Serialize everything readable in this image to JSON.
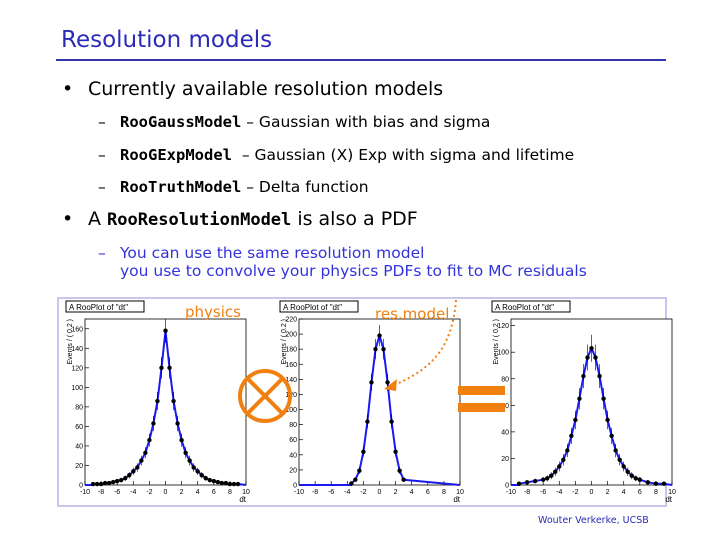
{
  "slide": {
    "title": "Resolution models",
    "bullets": [
      {
        "text": "Currently available resolution models",
        "subitems": [
          {
            "code": "RooGaussModel",
            "text": " – Gaussian with bias and sigma"
          },
          {
            "code": "RooGExpModel",
            "text": "  – Gaussian (X) Exp with sigma and lifetime"
          },
          {
            "code": "RooTruthModel",
            "text": " – Delta function"
          }
        ]
      },
      {
        "prefix": "A ",
        "code": "RooResolutionModel",
        "text": " is also a PDF",
        "subitems": [
          {
            "text": "You can use the same resolution model",
            "text2": "you use to convolve your physics PDFs to fit to MC residuals"
          }
        ]
      }
    ],
    "labels": {
      "physics": "physics",
      "resmodel": "res.model"
    },
    "operators": {
      "convolve": "convolution-circled-times-icon",
      "equals": "equals-sign"
    },
    "footer": "Wouter Verkerke, UCSB",
    "colors": {
      "title": "#2a2ab8",
      "accent": "#f08010",
      "curve": "#1a1aee",
      "panel_border": "#c8c8ee"
    }
  },
  "chart_data": [
    {
      "type": "scatter",
      "title": "A RooPlot of \"dt\"",
      "xlabel": "dt",
      "ylabel": "Events / ( 0.2 )",
      "xlim": [
        -10,
        10
      ],
      "ylim": [
        0,
        170
      ],
      "xticks": [
        -10,
        -8,
        -6,
        -4,
        -2,
        0,
        2,
        4,
        6,
        8,
        10
      ],
      "yticks": [
        0,
        20,
        40,
        60,
        80,
        100,
        120,
        140,
        160
      ],
      "x": [
        -9,
        -8.5,
        -8,
        -7.5,
        -7,
        -6.5,
        -6,
        -5.5,
        -5,
        -4.5,
        -4,
        -3.5,
        -3,
        -2.5,
        -2,
        -1.5,
        -1,
        -0.5,
        0,
        0.5,
        1,
        1.5,
        2,
        2.5,
        3,
        3.5,
        4,
        4.5,
        5,
        5.5,
        6,
        6.5,
        7,
        7.5,
        8,
        8.5,
        9
      ],
      "y": [
        1,
        1,
        1,
        2,
        2,
        3,
        4,
        5,
        7,
        10,
        14,
        18,
        25,
        33,
        46,
        63,
        86,
        120,
        158,
        120,
        86,
        63,
        46,
        33,
        25,
        18,
        14,
        10,
        7,
        5,
        4,
        3,
        2,
        2,
        1,
        1,
        1
      ]
    },
    {
      "type": "scatter",
      "title": "A RooPlot of \"dt\"",
      "xlabel": "dt",
      "ylabel": "Events / ( 0.2 )",
      "xlim": [
        -10,
        10
      ],
      "ylim": [
        0,
        220
      ],
      "xticks": [
        -10,
        -8,
        -6,
        -4,
        -2,
        0,
        2,
        4,
        6,
        8,
        10
      ],
      "yticks": [
        0,
        20,
        40,
        60,
        80,
        100,
        120,
        140,
        160,
        180,
        200,
        220
      ],
      "x": [
        -3.5,
        -3,
        -2.5,
        -2,
        -1.5,
        -1,
        -0.5,
        0,
        0.5,
        1,
        1.5,
        2,
        2.5,
        3
      ],
      "y": [
        2,
        7,
        19,
        44,
        84,
        136,
        180,
        198,
        180,
        136,
        84,
        44,
        19,
        7
      ]
    },
    {
      "type": "scatter",
      "title": "A RooPlot of \"dt\"",
      "xlabel": "dt",
      "ylabel": "Events / ( 0.2 )",
      "xlim": [
        -10,
        10
      ],
      "ylim": [
        0,
        125
      ],
      "xticks": [
        -10,
        -8,
        -6,
        -4,
        -2,
        0,
        2,
        4,
        6,
        8,
        10
      ],
      "yticks": [
        0,
        20,
        40,
        60,
        80,
        100,
        120
      ],
      "x": [
        -9,
        -8,
        -7,
        -6,
        -5.5,
        -5,
        -4.5,
        -4,
        -3.5,
        -3,
        -2.5,
        -2,
        -1.5,
        -1,
        -0.5,
        0,
        0.5,
        1,
        1.5,
        2,
        2.5,
        3,
        3.5,
        4,
        4.5,
        5,
        5.5,
        6,
        7,
        8,
        9
      ],
      "y": [
        1,
        2,
        3,
        4,
        5,
        7,
        10,
        14,
        19,
        26,
        37,
        49,
        65,
        82,
        96,
        103,
        96,
        82,
        65,
        49,
        37,
        26,
        19,
        14,
        10,
        7,
        5,
        4,
        2,
        1,
        1
      ]
    }
  ]
}
